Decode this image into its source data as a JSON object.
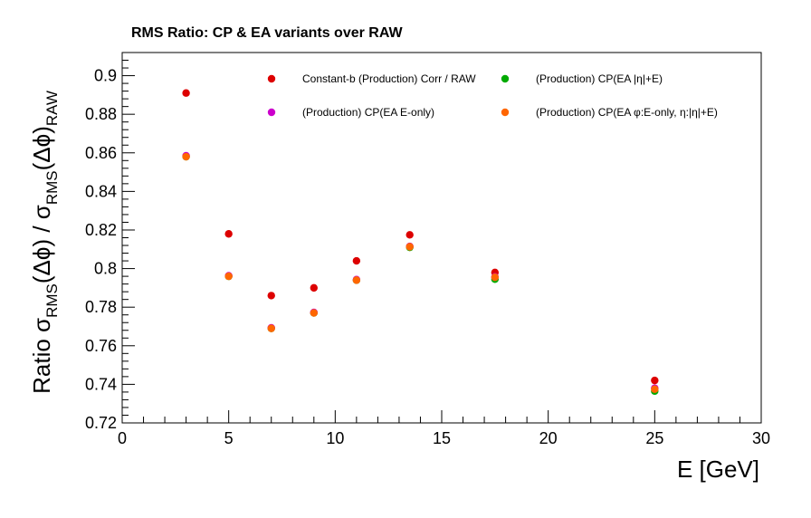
{
  "chart_data": {
    "type": "scatter",
    "title": "RMS Ratio: CP & EA variants over RAW",
    "xlabel": "E  [GeV]",
    "ylabel": {
      "prefix": "Ratio  σ",
      "sub1": "RMS",
      "mid": "(Δϕ) / σ",
      "sub2": "RMS",
      "mid2": "(Δϕ)",
      "sub3": "RAW"
    },
    "xlim": [
      0,
      30
    ],
    "ylim": [
      0.72,
      0.912
    ],
    "xticks": [
      0,
      5,
      10,
      15,
      20,
      25,
      30
    ],
    "xtick_labels": [
      "0",
      "5",
      "10",
      "15",
      "20",
      "25",
      "30"
    ],
    "yticks": [
      0.72,
      0.74,
      0.76,
      0.78,
      0.8,
      0.82,
      0.84,
      0.86,
      0.88,
      0.9
    ],
    "ytick_labels": [
      "0.72",
      "0.74",
      "0.76",
      "0.78",
      "0.8",
      "0.82",
      "0.84",
      "0.86",
      "0.88",
      "0.9"
    ],
    "grid": false,
    "legend_position": "top",
    "series": [
      {
        "name": "Constant-b (Production) Corr / RAW",
        "color": "#dd0000",
        "x": [
          3,
          5,
          7,
          9,
          11,
          13.5,
          17.5,
          25
        ],
        "y": [
          0.891,
          0.818,
          0.786,
          0.79,
          0.804,
          0.8175,
          0.798,
          0.742
        ]
      },
      {
        "name": "(Production) CP(EA |η|+E)",
        "color": "#00aa00",
        "x": [
          3,
          5,
          7,
          9,
          11,
          13.5,
          17.5,
          25
        ],
        "y": [
          0.858,
          0.796,
          0.769,
          0.777,
          0.794,
          0.811,
          0.7945,
          0.7365
        ]
      },
      {
        "name": "(Production) CP(EA E-only)",
        "color": "#cc00cc",
        "x": [
          3,
          5,
          7,
          9,
          11,
          13.5,
          17.5,
          25
        ],
        "y": [
          0.8585,
          0.7963,
          0.7693,
          0.7773,
          0.7943,
          0.8115,
          0.7957,
          0.738
        ]
      },
      {
        "name": "(Production) CP(EA φ:E-only, η:|η|+E)",
        "color": "#ff6600",
        "x": [
          3,
          5,
          7,
          9,
          11,
          13.5,
          17.5,
          25
        ],
        "y": [
          0.858,
          0.796,
          0.769,
          0.777,
          0.794,
          0.8113,
          0.7955,
          0.7375
        ]
      }
    ],
    "draw_order": [
      0,
      1,
      2,
      3
    ]
  }
}
